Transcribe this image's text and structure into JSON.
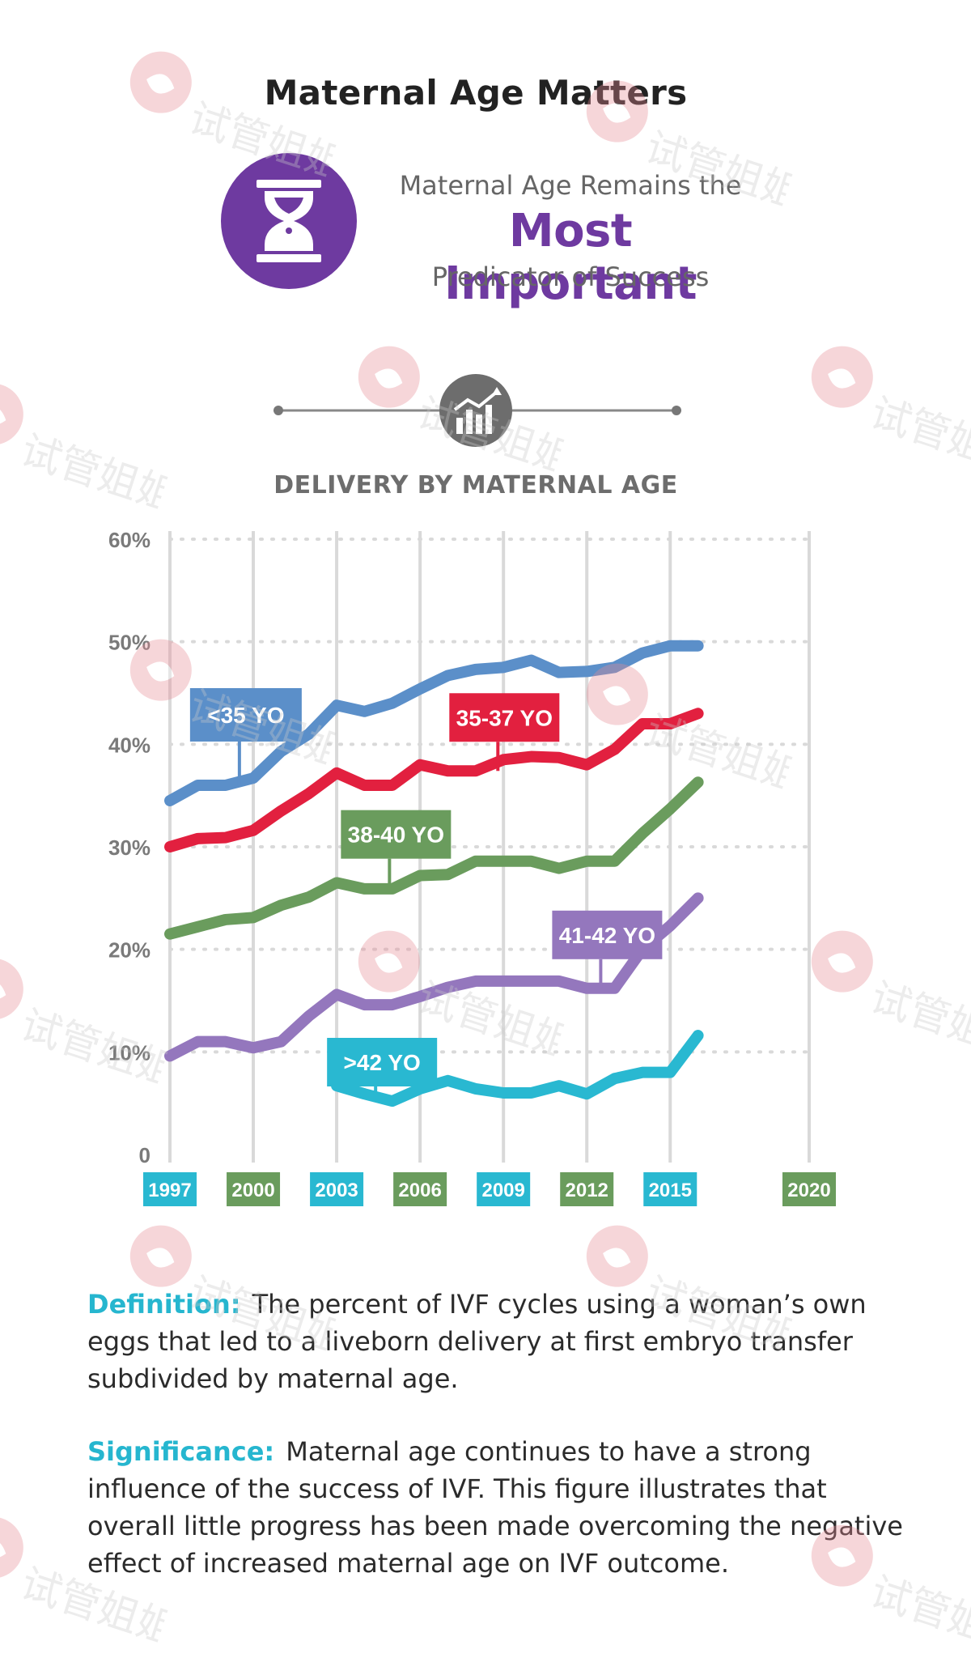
{
  "page": {
    "title": "Maternal Age Matters",
    "tagline_top": "Maternal Age Remains the",
    "tagline_main": "Most Important",
    "tagline_bottom": "Predicator of Success"
  },
  "icons": {
    "badge": "hourglass-icon",
    "chart_header": "bar-chart-trend-icon",
    "watermark": "watermark-logo"
  },
  "colors": {
    "purple": "#6e3aa0",
    "blue": "#5b8fc9",
    "red": "#e2203f",
    "green": "#6a9c5d",
    "violet": "#9477bd",
    "cyan": "#29b8d1",
    "grid": "#d9d9d9",
    "watermark": "#e88b95"
  },
  "chart_data": {
    "type": "line",
    "title": "DELIVERY BY MATERNAL AGE",
    "ylim": [
      0,
      60
    ],
    "y_ticks": [
      0,
      10,
      20,
      30,
      40,
      50,
      60
    ],
    "y_tick_labels": [
      "0",
      "10%",
      "20%",
      "30%",
      "40%",
      "50%",
      "60%"
    ],
    "xlim": [
      1997,
      2020
    ],
    "x_ticks": [
      1997,
      2000,
      2003,
      2006,
      2009,
      2012,
      2015,
      2020
    ],
    "x_tick_labels": [
      "1997",
      "2000",
      "2003",
      "2006",
      "2009",
      "2012",
      "2015",
      "2020"
    ],
    "x_tick_colors": [
      "#29b8d1",
      "#6a9c5d",
      "#29b8d1",
      "#6a9c5d",
      "#29b8d1",
      "#6a9c5d",
      "#29b8d1",
      "#6a9c5d"
    ],
    "grid": true,
    "series": [
      {
        "name": "<35 YO",
        "color": "#5b8fc9",
        "x": [
          1997,
          1998,
          1999,
          2000,
          2001,
          2002,
          2003,
          2004,
          2005,
          2006,
          2007,
          2008,
          2009,
          2010,
          2011,
          2012,
          2013,
          2014,
          2015,
          2016
        ],
        "y": [
          34.5,
          36,
          36,
          36.7,
          39.3,
          41,
          43.8,
          43.2,
          44,
          45.4,
          46.7,
          47.3,
          47.5,
          48.2,
          47,
          47.1,
          47.5,
          48.9,
          49.6,
          49.6
        ],
        "label_anchor": [
          1999.5,
          36
        ]
      },
      {
        "name": "35-37 YO",
        "color": "#e2203f",
        "x": [
          1997,
          1998,
          1999,
          2000,
          2001,
          2002,
          2003,
          2004,
          2005,
          2006,
          2007,
          2008,
          2009,
          2010,
          2011,
          2012,
          2013,
          2014,
          2015,
          2016
        ],
        "y": [
          30,
          30.8,
          30.9,
          31.6,
          33.5,
          35.2,
          37.2,
          36,
          36,
          38,
          37.4,
          37.4,
          38.5,
          38.8,
          38.7,
          38,
          39.5,
          42,
          42,
          43
        ],
        "label_anchor": [
          2008.8,
          37.4
        ]
      },
      {
        "name": "38-40 YO",
        "color": "#6a9c5d",
        "x": [
          1997,
          1998,
          1999,
          2000,
          2001,
          2002,
          2003,
          2004,
          2005,
          2006,
          2007,
          2008,
          2009,
          2010,
          2011,
          2012,
          2013,
          2014,
          2015,
          2016
        ],
        "y": [
          21.5,
          22.2,
          22.9,
          23.1,
          24.3,
          25.1,
          26.5,
          25.9,
          25.9,
          27.2,
          27.3,
          28.6,
          28.6,
          28.6,
          27.9,
          28.6,
          28.6,
          31.3,
          33.7,
          36.3
        ],
        "label_anchor": [
          2004.9,
          26
        ]
      },
      {
        "name": "41-42 YO",
        "color": "#9477bd",
        "x": [
          1997,
          1998,
          1999,
          2000,
          2001,
          2002,
          2003,
          2004,
          2005,
          2006,
          2007,
          2008,
          2009,
          2010,
          2011,
          2012,
          2013,
          2014,
          2015,
          2016
        ],
        "y": [
          9.6,
          11,
          11,
          10.4,
          11,
          13.5,
          15.6,
          14.6,
          14.6,
          15.4,
          16.3,
          16.9,
          16.9,
          16.9,
          16.9,
          16.2,
          16.2,
          20,
          22.3,
          25
        ],
        "label_anchor": [
          2012.5,
          16.2
        ]
      },
      {
        "name": ">42 YO",
        "color": "#29b8d1",
        "x": [
          2003,
          2004,
          2005,
          2006,
          2007,
          2008,
          2009,
          2010,
          2011,
          2012,
          2013,
          2014,
          2015,
          2016
        ],
        "y": [
          6.7,
          5.9,
          5.2,
          6.4,
          7.2,
          6.4,
          6,
          6,
          6.7,
          5.9,
          7.4,
          8,
          8,
          11.6
        ],
        "label_anchor": [
          2004.4,
          6
        ]
      }
    ]
  },
  "text": {
    "definition_term": "Definition:",
    "definition_body": "The percent of IVF cycles using a woman’s own eggs that led to a liveborn delivery at first embryo transfer subdivided by maternal age.",
    "significance_term": "Significance:",
    "significance_body": "Maternal age continues to have a strong influence of the success of IVF.  This figure illustrates that overall little progress has been made overcoming the negative effect of increased maternal age on IVF outcome."
  },
  "watermark": {
    "text": "试管姐姐"
  }
}
